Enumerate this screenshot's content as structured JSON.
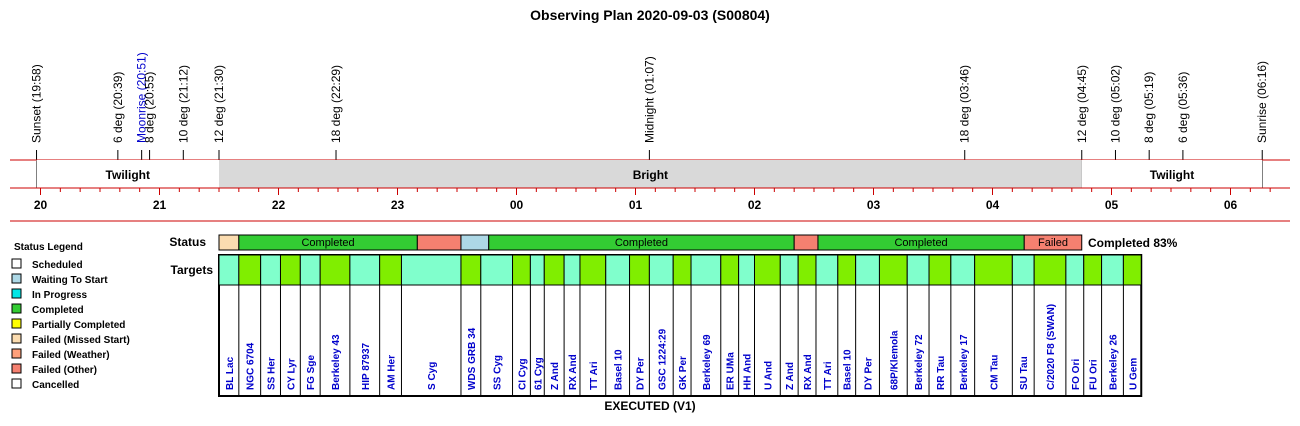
{
  "title": "Observing Plan 2020-09-03 (S00804)",
  "events": [
    {
      "label": "Sunset (19:58)",
      "time": "19:58",
      "color": "#000000"
    },
    {
      "label": "6 deg (20:39)",
      "time": "20:39",
      "color": "#000000"
    },
    {
      "label": "Moonrise (20:51)",
      "time": "20:51",
      "color": "#0000cc"
    },
    {
      "label": "8 deg (20:55)",
      "time": "20:55",
      "color": "#000000"
    },
    {
      "label": "10 deg (21:12)",
      "time": "21:12",
      "color": "#000000"
    },
    {
      "label": "12 deg (21:30)",
      "time": "21:30",
      "color": "#000000"
    },
    {
      "label": "18 deg (22:29)",
      "time": "22:29",
      "color": "#000000"
    },
    {
      "label": "Midnight (01:07)",
      "time": "01:07",
      "color": "#000000"
    },
    {
      "label": "18 deg (03:46)",
      "time": "03:46",
      "color": "#000000"
    },
    {
      "label": "12 deg (04:45)",
      "time": "04:45",
      "color": "#000000"
    },
    {
      "label": "10 deg (05:02)",
      "time": "05:02",
      "color": "#000000"
    },
    {
      "label": "8 deg (05:19)",
      "time": "05:19",
      "color": "#000000"
    },
    {
      "label": "6 deg (05:36)",
      "time": "05:36",
      "color": "#000000"
    },
    {
      "label": "Sunrise (06:16)",
      "time": "06:16",
      "color": "#000000"
    }
  ],
  "periods": [
    {
      "label": "Twilight",
      "start": "19:58",
      "end": "21:30",
      "color": "#ffffff"
    },
    {
      "label": "Bright",
      "start": "21:30",
      "end": "04:45",
      "color": "#d9d9d9"
    },
    {
      "label": "Twilight",
      "start": "04:45",
      "end": "06:16",
      "color": "#ffffff"
    }
  ],
  "hours": [
    "20",
    "21",
    "22",
    "23",
    "00",
    "01",
    "02",
    "03",
    "04",
    "05",
    "06"
  ],
  "row_labels": {
    "status": "Status",
    "targets": "Targets"
  },
  "legend": {
    "title": "Status Legend",
    "items": [
      {
        "label": "Scheduled",
        "color": "#ffffff"
      },
      {
        "label": "Waiting To Start",
        "color": "#add8e6"
      },
      {
        "label": "In Progress",
        "color": "#00e5e5"
      },
      {
        "label": "Completed",
        "color": "#33cc33"
      },
      {
        "label": "Partially Completed",
        "color": "#ffff00"
      },
      {
        "label": "Failed (Missed Start)",
        "color": "#fbdcb0"
      },
      {
        "label": "Failed (Weather)",
        "color": "#ffa07a"
      },
      {
        "label": "Failed (Other)",
        "color": "#f58070"
      },
      {
        "label": "Cancelled",
        "color": "#ffffff"
      }
    ]
  },
  "completion": "Completed 83%",
  "footer": "EXECUTED (V1)",
  "colors": {
    "grid_red": "#cc0000",
    "completed": "#33cc33",
    "failed_other": "#f58070",
    "missed_start": "#fbdcb0",
    "waiting": "#add8e6",
    "target_green": "#80ee00",
    "target_aqua": "#80ffcc",
    "target_text": "#0000cc"
  },
  "chart_data": {
    "type": "table",
    "status_blocks": [
      {
        "label": "",
        "start": "21:30",
        "end": "21:40",
        "color": "#fbdcb0"
      },
      {
        "label": "Completed",
        "start": "21:40",
        "end": "23:10",
        "color": "#33cc33"
      },
      {
        "label": "",
        "start": "23:10",
        "end": "23:32",
        "color": "#f58070"
      },
      {
        "label": "",
        "start": "23:32",
        "end": "23:46",
        "color": "#add8e6"
      },
      {
        "label": "Completed",
        "start": "23:46",
        "end": "02:20",
        "color": "#33cc33"
      },
      {
        "label": "",
        "start": "02:20",
        "end": "02:32",
        "color": "#f58070"
      },
      {
        "label": "Completed",
        "start": "02:32",
        "end": "04:16",
        "color": "#33cc33"
      },
      {
        "label": "Failed",
        "start": "04:16",
        "end": "04:45",
        "color": "#f58070"
      }
    ],
    "targets": [
      {
        "name": "BL Lac",
        "start": "21:30",
        "end": "21:40",
        "color": "#80ffcc"
      },
      {
        "name": "NGC 6704",
        "start": "21:40",
        "end": "21:51",
        "color": "#80ee00"
      },
      {
        "name": "SS Her",
        "start": "21:51",
        "end": "22:01",
        "color": "#80ffcc"
      },
      {
        "name": "CY Lyr",
        "start": "22:01",
        "end": "22:11",
        "color": "#80ee00"
      },
      {
        "name": "FG Sge",
        "start": "22:11",
        "end": "22:21",
        "color": "#80ffcc"
      },
      {
        "name": "Berkeley 43",
        "start": "22:21",
        "end": "22:36",
        "color": "#80ee00"
      },
      {
        "name": "HIP 87937",
        "start": "22:36",
        "end": "22:51",
        "color": "#80ffcc"
      },
      {
        "name": "AM Her",
        "start": "22:51",
        "end": "23:02",
        "color": "#80ee00"
      },
      {
        "name": "S Cyg",
        "start": "23:02",
        "end": "23:32",
        "color": "#80ffcc"
      },
      {
        "name": "WDS GRB 34",
        "start": "23:32",
        "end": "23:42",
        "color": "#80ee00"
      },
      {
        "name": "SS Cyg",
        "start": "23:42",
        "end": "23:58",
        "color": "#80ffcc"
      },
      {
        "name": "CI Cyg",
        "start": "23:58",
        "end": "24:07",
        "color": "#80ee00"
      },
      {
        "name": "61 Cyg",
        "start": "24:07",
        "end": "24:14",
        "color": "#80ffcc"
      },
      {
        "name": "Z And",
        "start": "24:14",
        "end": "24:24",
        "color": "#80ee00"
      },
      {
        "name": "RX And",
        "start": "24:24",
        "end": "24:32",
        "color": "#80ffcc"
      },
      {
        "name": "TT Ari",
        "start": "24:32",
        "end": "24:45",
        "color": "#80ee00"
      },
      {
        "name": "Basel 10",
        "start": "24:45",
        "end": "24:57",
        "color": "#80ffcc"
      },
      {
        "name": "DY Per",
        "start": "24:57",
        "end": "25:07",
        "color": "#80ee00"
      },
      {
        "name": "GSC 1224:29",
        "start": "25:07",
        "end": "25:19",
        "color": "#80ffcc"
      },
      {
        "name": "GK Per",
        "start": "25:19",
        "end": "25:28",
        "color": "#80ee00"
      },
      {
        "name": "Berkeley 69",
        "start": "25:28",
        "end": "25:43",
        "color": "#80ffcc"
      },
      {
        "name": "ER UMa",
        "start": "25:43",
        "end": "25:52",
        "color": "#80ee00"
      },
      {
        "name": "HH And",
        "start": "25:52",
        "end": "26:00",
        "color": "#80ffcc"
      },
      {
        "name": "U And",
        "start": "26:00",
        "end": "26:13",
        "color": "#80ee00"
      },
      {
        "name": "Z And",
        "start": "26:13",
        "end": "26:22",
        "color": "#80ffcc"
      },
      {
        "name": "RX And",
        "start": "26:22",
        "end": "26:31",
        "color": "#80ee00"
      },
      {
        "name": "TT Ari",
        "start": "26:31",
        "end": "26:42",
        "color": "#80ffcc"
      },
      {
        "name": "Basel 10",
        "start": "26:42",
        "end": "26:51",
        "color": "#80ee00"
      },
      {
        "name": "DY Per",
        "start": "26:51",
        "end": "27:03",
        "color": "#80ffcc"
      },
      {
        "name": "68P/Klemola",
        "start": "27:03",
        "end": "27:17",
        "color": "#80ee00"
      },
      {
        "name": "Berkeley 72",
        "start": "27:17",
        "end": "27:28",
        "color": "#80ffcc"
      },
      {
        "name": "RR Tau",
        "start": "27:28",
        "end": "27:39",
        "color": "#80ee00"
      },
      {
        "name": "Berkeley 17",
        "start": "27:39",
        "end": "27:51",
        "color": "#80ffcc"
      },
      {
        "name": "CM Tau",
        "start": "27:51",
        "end": "28:10",
        "color": "#80ee00"
      },
      {
        "name": "SU Tau",
        "start": "28:10",
        "end": "28:21",
        "color": "#80ffcc"
      },
      {
        "name": "C/2020 F8 (SWAN)",
        "start": "28:21",
        "end": "28:37",
        "color": "#80ee00"
      },
      {
        "name": "FO Ori",
        "start": "28:37",
        "end": "28:46",
        "color": "#80ffcc"
      },
      {
        "name": "FU Ori",
        "start": "28:46",
        "end": "28:55",
        "color": "#80ee00"
      },
      {
        "name": "Berkeley 26",
        "start": "28:55",
        "end": "29:06",
        "color": "#80ffcc"
      },
      {
        "name": "U Gem",
        "start": "29:06",
        "end": "29:15",
        "color": "#80ee00"
      }
    ]
  }
}
